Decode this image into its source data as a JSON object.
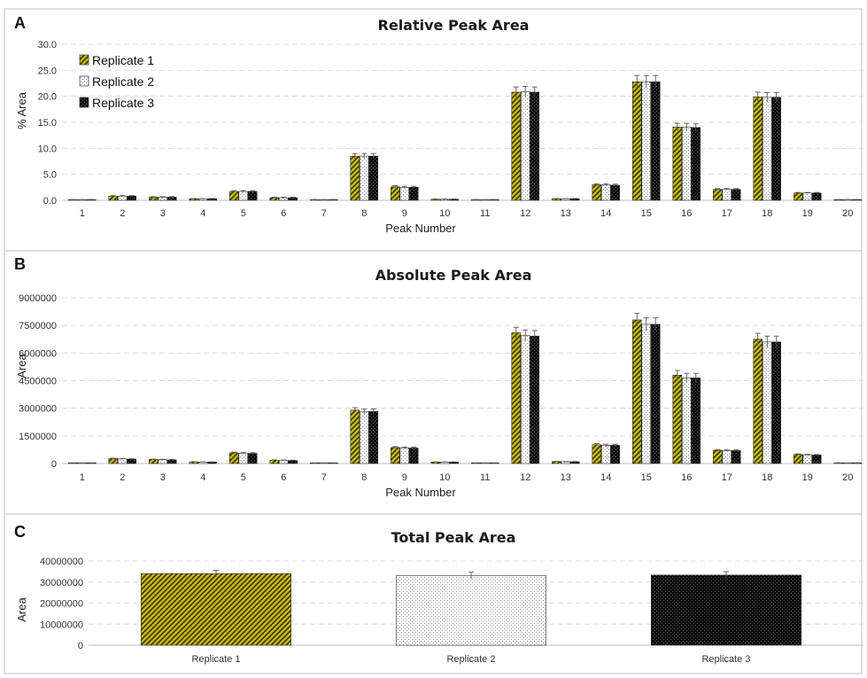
{
  "colors": {
    "replicate1": "#c5bc1c",
    "replicate2": "#ffffff",
    "replicate3": "#111111",
    "grid": "#dddddd",
    "errorbar": "#555555"
  },
  "chart_data": [
    {
      "id": "A",
      "type": "bar",
      "panel_label": "A",
      "title": "Relative Peak Area",
      "xlabel": "Peak Number",
      "ylabel": "% Area",
      "ylim": [
        0,
        30
      ],
      "ytick_labels": [
        "0.0",
        "5.0",
        "10.0",
        "15.0",
        "20.0",
        "25.0",
        "30.0"
      ],
      "grid": true,
      "legend_position": "top-left",
      "categories": [
        "1",
        "2",
        "3",
        "4",
        "5",
        "6",
        "7",
        "8",
        "9",
        "10",
        "11",
        "12",
        "13",
        "14",
        "15",
        "16",
        "17",
        "18",
        "19",
        "20"
      ],
      "series": [
        {
          "name": "Replicate 1",
          "values": [
            0.1,
            0.8,
            0.6,
            0.3,
            1.7,
            0.5,
            0.1,
            8.5,
            2.6,
            0.2,
            0.1,
            20.8,
            0.3,
            3.0,
            22.8,
            14.1,
            2.1,
            19.9,
            1.4,
            0.1
          ],
          "errors": [
            0.05,
            0.1,
            0.1,
            0.05,
            0.15,
            0.1,
            0.05,
            0.5,
            0.2,
            0.05,
            0.05,
            1.0,
            0.05,
            0.2,
            1.2,
            0.7,
            0.15,
            0.9,
            0.1,
            0.05
          ]
        },
        {
          "name": "Replicate 2",
          "values": [
            0.1,
            0.8,
            0.6,
            0.3,
            1.7,
            0.5,
            0.1,
            8.5,
            2.5,
            0.2,
            0.1,
            20.9,
            0.3,
            3.0,
            22.8,
            14.1,
            2.1,
            19.8,
            1.4,
            0.1
          ],
          "errors": [
            0.05,
            0.1,
            0.1,
            0.05,
            0.15,
            0.1,
            0.05,
            0.5,
            0.2,
            0.05,
            0.05,
            1.0,
            0.05,
            0.2,
            1.2,
            0.7,
            0.15,
            0.9,
            0.1,
            0.05
          ]
        },
        {
          "name": "Replicate 3",
          "values": [
            0.1,
            0.8,
            0.6,
            0.3,
            1.7,
            0.5,
            0.1,
            8.5,
            2.5,
            0.2,
            0.1,
            20.8,
            0.3,
            2.9,
            22.8,
            14.0,
            2.1,
            19.8,
            1.4,
            0.1
          ],
          "errors": [
            0.05,
            0.1,
            0.1,
            0.05,
            0.15,
            0.1,
            0.05,
            0.5,
            0.2,
            0.05,
            0.05,
            1.0,
            0.05,
            0.2,
            1.2,
            0.7,
            0.15,
            0.9,
            0.1,
            0.05
          ]
        }
      ]
    },
    {
      "id": "B",
      "type": "bar",
      "panel_label": "B",
      "title": "Absolute Peak Area",
      "xlabel": "Peak Number",
      "ylabel": "Area",
      "ylim": [
        0,
        9000000
      ],
      "ytick_labels": [
        "0",
        "1500000",
        "3000000",
        "4500000",
        "6000000",
        "7500000",
        "9000000"
      ],
      "grid": true,
      "categories": [
        "1",
        "2",
        "3",
        "4",
        "5",
        "6",
        "7",
        "8",
        "9",
        "10",
        "11",
        "12",
        "13",
        "14",
        "15",
        "16",
        "17",
        "18",
        "19",
        "20"
      ],
      "series": [
        {
          "name": "Replicate 1",
          "values": [
            30000,
            270000,
            220000,
            90000,
            580000,
            180000,
            30000,
            2900000,
            870000,
            80000,
            30000,
            7100000,
            110000,
            1020000,
            7800000,
            4800000,
            720000,
            6750000,
            490000,
            30000
          ],
          "errors": [
            5000,
            20000,
            20000,
            10000,
            40000,
            20000,
            5000,
            130000,
            50000,
            10000,
            5000,
            300000,
            10000,
            60000,
            350000,
            250000,
            40000,
            320000,
            30000,
            5000
          ]
        },
        {
          "name": "Replicate 2",
          "values": [
            30000,
            250000,
            210000,
            80000,
            550000,
            170000,
            30000,
            2820000,
            850000,
            80000,
            30000,
            6950000,
            100000,
            990000,
            7560000,
            4650000,
            700000,
            6600000,
            470000,
            30000
          ],
          "errors": [
            5000,
            20000,
            20000,
            10000,
            40000,
            20000,
            5000,
            130000,
            50000,
            10000,
            5000,
            300000,
            10000,
            60000,
            350000,
            250000,
            40000,
            320000,
            30000,
            5000
          ]
        },
        {
          "name": "Replicate 3",
          "values": [
            30000,
            240000,
            200000,
            80000,
            550000,
            160000,
            30000,
            2830000,
            840000,
            80000,
            30000,
            6920000,
            100000,
            990000,
            7560000,
            4650000,
            700000,
            6600000,
            460000,
            30000
          ],
          "errors": [
            5000,
            20000,
            20000,
            10000,
            40000,
            20000,
            5000,
            130000,
            50000,
            10000,
            5000,
            300000,
            10000,
            60000,
            350000,
            250000,
            40000,
            320000,
            30000,
            5000
          ]
        }
      ]
    },
    {
      "id": "C",
      "type": "bar",
      "panel_label": "C",
      "title": "Total Peak Area",
      "xlabel": "",
      "ylabel": "Area",
      "ylim": [
        0,
        40000000
      ],
      "ytick_labels": [
        "0",
        "10000000",
        "20000000",
        "30000000",
        "40000000"
      ],
      "grid": true,
      "categories": [
        "Replicate 1",
        "Replicate 2",
        "Replicate 3"
      ],
      "values": [
        34000000,
        33000000,
        33300000
      ],
      "errors": [
        1600000,
        1700000,
        1600000
      ]
    }
  ]
}
